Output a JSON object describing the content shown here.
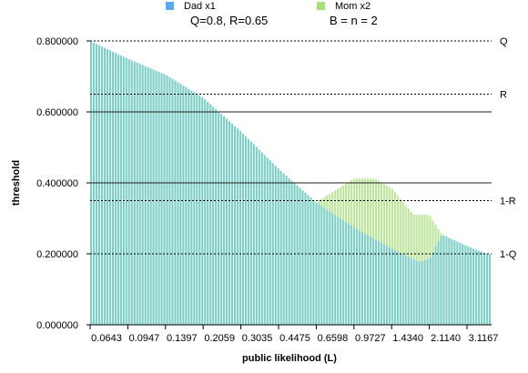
{
  "chart_data": {
    "type": "bar",
    "legend": [
      {
        "name": "Dad x1",
        "color": "#5aa9f2"
      },
      {
        "name": "Mom x2",
        "color": "#a6e07a"
      }
    ],
    "annotations": [
      "Q=0.8, R=0.65",
      "B = n = 2"
    ],
    "xlabel": "public likelihood (L)",
    "ylabel": "threshold",
    "x_tick_labels": [
      "0.0643",
      "0.0947",
      "0.1397",
      "0.2059",
      "0.3035",
      "0.4475",
      "0.6598",
      "0.9727",
      "1.4340",
      "2.1140",
      "3.1167"
    ],
    "y_tick_labels": [
      "0.000000",
      "0.200000",
      "0.400000",
      "0.600000",
      "0.800000"
    ],
    "ylim": [
      0,
      0.8
    ],
    "reference_lines": [
      {
        "label": "Q",
        "value": 0.8,
        "style": "dotted"
      },
      {
        "label": "R",
        "value": 0.65,
        "style": "dotted"
      },
      {
        "label": "",
        "value": 0.6,
        "style": "solid"
      },
      {
        "label": "",
        "value": 0.4,
        "style": "solid"
      },
      {
        "label": "1-R",
        "value": 0.35,
        "style": "dotted"
      },
      {
        "label": "1-Q",
        "value": 0.2,
        "style": "dotted"
      }
    ],
    "dad_curve": {
      "name": "Dad x1",
      "points": [
        [
          0.0643,
          0.8
        ],
        [
          0.0947,
          0.75
        ],
        [
          0.1397,
          0.705
        ],
        [
          0.2059,
          0.64
        ],
        [
          0.3035,
          0.545
        ],
        [
          0.4475,
          0.44
        ],
        [
          0.6598,
          0.345
        ],
        [
          0.9727,
          0.275
        ],
        [
          1.434,
          0.215
        ],
        [
          1.9,
          0.178
        ],
        [
          2.114,
          0.185
        ],
        [
          2.4,
          0.255
        ],
        [
          3.1167,
          0.222
        ],
        [
          3.9,
          0.198
        ]
      ]
    },
    "mom_curve": {
      "name": "Mom x2",
      "points": [
        [
          0.0643,
          0.8
        ],
        [
          0.0947,
          0.75
        ],
        [
          0.1397,
          0.705
        ],
        [
          0.2059,
          0.64
        ],
        [
          0.3035,
          0.545
        ],
        [
          0.4475,
          0.44
        ],
        [
          0.6598,
          0.345
        ],
        [
          0.7,
          0.355
        ],
        [
          0.9727,
          0.412
        ],
        [
          1.2,
          0.412
        ],
        [
          1.434,
          0.385
        ],
        [
          1.8,
          0.31
        ],
        [
          2.114,
          0.31
        ],
        [
          2.4,
          0.255
        ],
        [
          3.1167,
          0.222
        ],
        [
          3.9,
          0.198
        ]
      ]
    }
  }
}
